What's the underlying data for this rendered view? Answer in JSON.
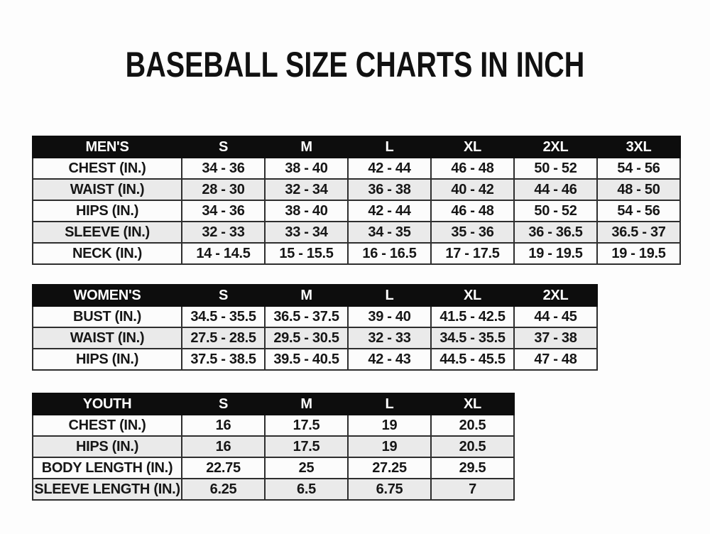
{
  "title": "BASEBALL SIZE CHARTS IN INCH",
  "colors": {
    "page_bg": "#fdfdfd",
    "header_bg": "#0d0d0d",
    "header_text": "#ffffff",
    "row_bg": "#fcfcfc",
    "row_alt_bg": "#eaeaea",
    "border": "#2e2e2e",
    "text": "#161616"
  },
  "chart_data": [
    {
      "type": "table",
      "name": "mens",
      "header": "MEN'S",
      "sizes": [
        "S",
        "M",
        "L",
        "XL",
        "2XL",
        "3XL"
      ],
      "rows": [
        {
          "label": "CHEST (IN.)",
          "values": [
            "34 - 36",
            "38 - 40",
            "42 - 44",
            "46 - 48",
            "50 - 52",
            "54 - 56"
          ]
        },
        {
          "label": "WAIST (IN.)",
          "values": [
            "28 - 30",
            "32 - 34",
            "36 - 38",
            "40 - 42",
            "44 - 46",
            "48 - 50"
          ]
        },
        {
          "label": "HIPS (IN.)",
          "values": [
            "34 - 36",
            "38 - 40",
            "42 - 44",
            "46 - 48",
            "50 - 52",
            "54 - 56"
          ]
        },
        {
          "label": "SLEEVE (IN.)",
          "values": [
            "32 - 33",
            "33 - 34",
            "34 - 35",
            "35 - 36",
            "36 - 36.5",
            "36.5 - 37"
          ]
        },
        {
          "label": "NECK (IN.)",
          "values": [
            "14 - 14.5",
            "15 - 15.5",
            "16 - 16.5",
            "17 - 17.5",
            "19 - 19.5",
            "19 - 19.5"
          ]
        }
      ]
    },
    {
      "type": "table",
      "name": "womens",
      "header": "WOMEN'S",
      "sizes": [
        "S",
        "M",
        "L",
        "XL",
        "2XL"
      ],
      "rows": [
        {
          "label": "BUST (IN.)",
          "values": [
            "34.5 - 35.5",
            "36.5 - 37.5",
            "39 - 40",
            "41.5 - 42.5",
            "44 - 45"
          ]
        },
        {
          "label": "WAIST (IN.)",
          "values": [
            "27.5 - 28.5",
            "29.5 - 30.5",
            "32 - 33",
            "34.5 - 35.5",
            "37 - 38"
          ]
        },
        {
          "label": "HIPS (IN.)",
          "values": [
            "37.5 - 38.5",
            "39.5 - 40.5",
            "42 - 43",
            "44.5 - 45.5",
            "47 - 48"
          ]
        }
      ]
    },
    {
      "type": "table",
      "name": "youth",
      "header": "YOUTH",
      "sizes": [
        "S",
        "M",
        "L",
        "XL"
      ],
      "rows": [
        {
          "label": "CHEST (IN.)",
          "values": [
            "16",
            "17.5",
            "19",
            "20.5"
          ]
        },
        {
          "label": "HIPS (IN.)",
          "values": [
            "16",
            "17.5",
            "19",
            "20.5"
          ]
        },
        {
          "label": "BODY LENGTH (IN.)",
          "values": [
            "22.75",
            "25",
            "27.25",
            "29.5"
          ]
        },
        {
          "label": "SLEEVE LENGTH (IN.)",
          "values": [
            "6.25",
            "6.5",
            "6.75",
            "7"
          ]
        }
      ]
    }
  ]
}
